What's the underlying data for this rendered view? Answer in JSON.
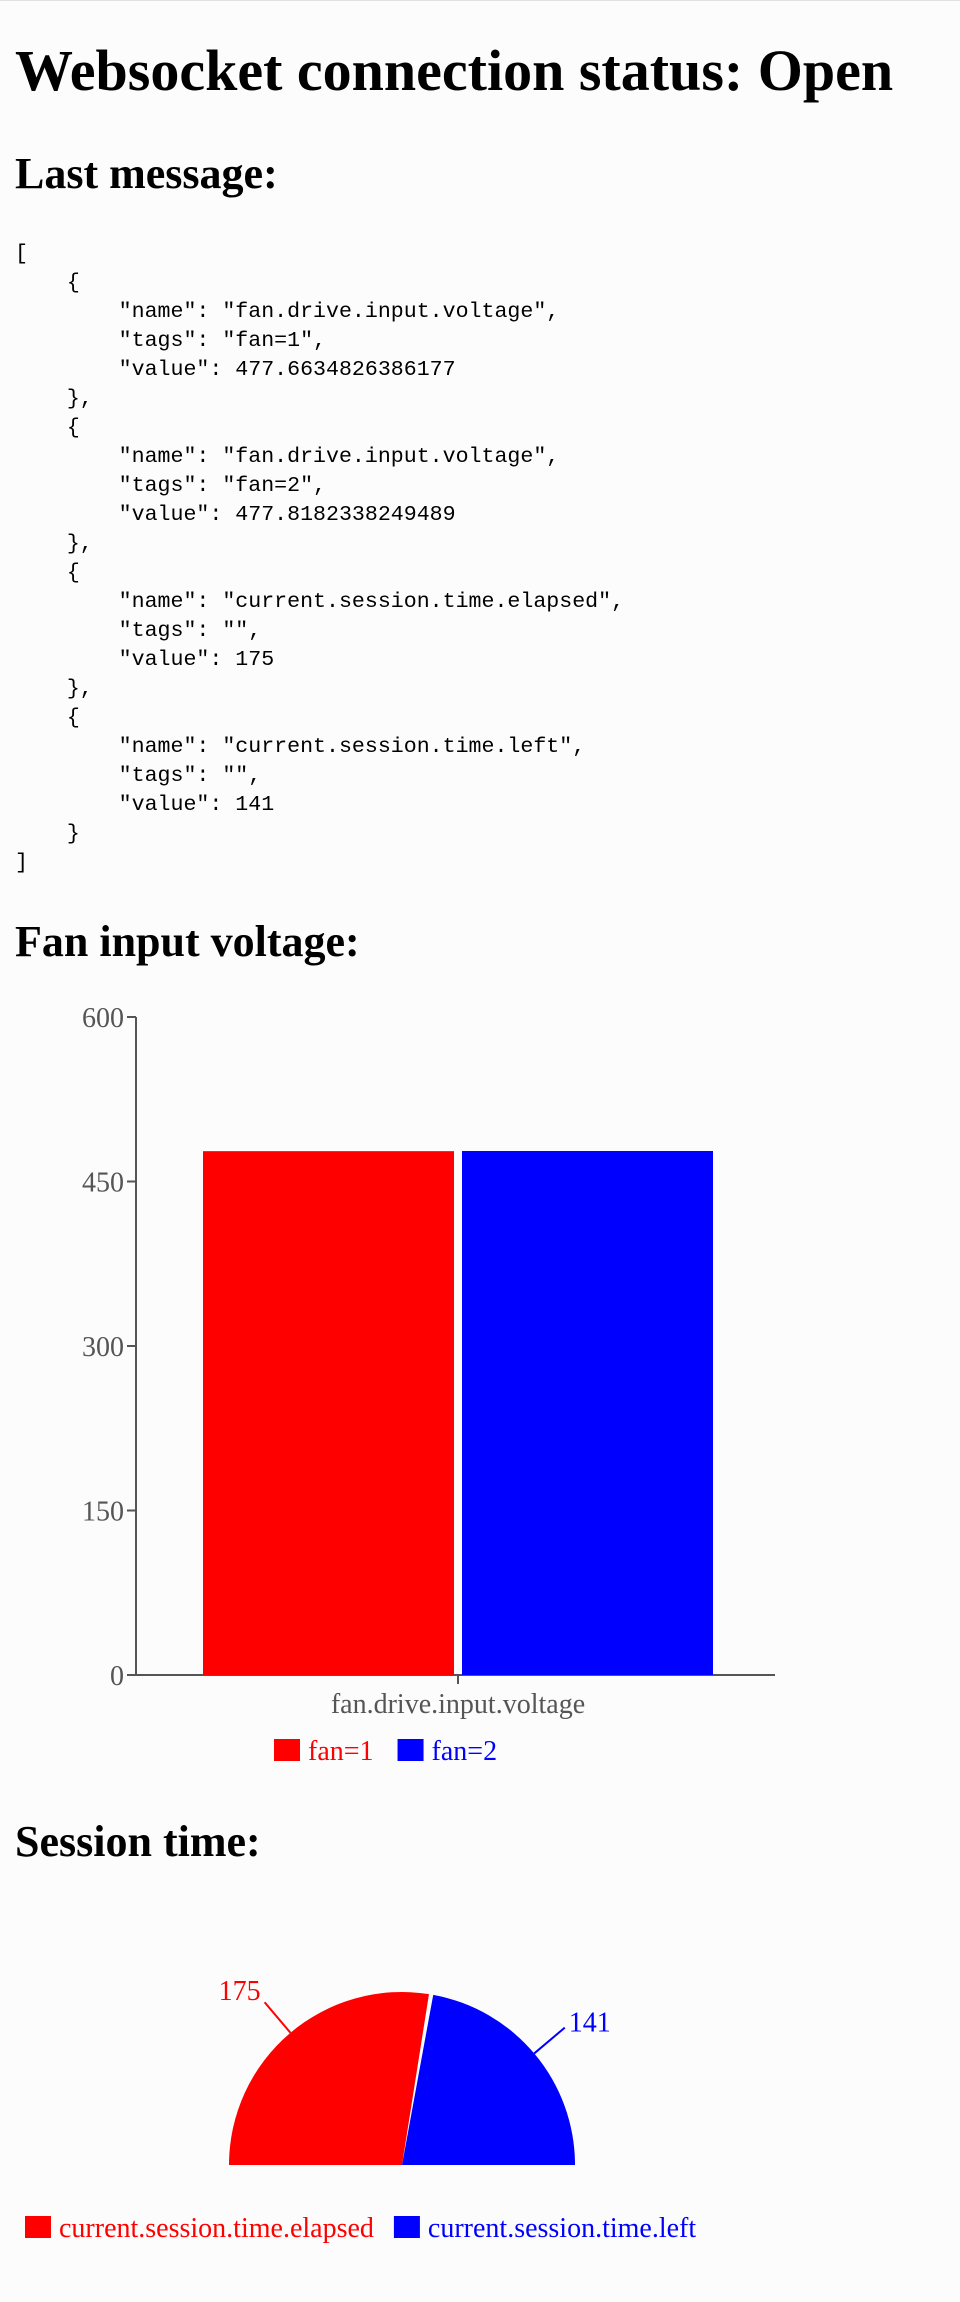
{
  "page": {
    "status_heading": "Websocket connection status: Open",
    "last_message_heading": "Last message:",
    "last_message_json": "[\n    {\n        \"name\": \"fan.drive.input.voltage\",\n        \"tags\": \"fan=1\",\n        \"value\": 477.6634826386177\n    },\n    {\n        \"name\": \"fan.drive.input.voltage\",\n        \"tags\": \"fan=2\",\n        \"value\": 477.8182338249489\n    },\n    {\n        \"name\": \"current.session.time.elapsed\",\n        \"tags\": \"\",\n        \"value\": 175\n    },\n    {\n        \"name\": \"current.session.time.left\",\n        \"tags\": \"\",\n        \"value\": 141\n    }\n]",
    "fan_heading": "Fan input voltage:",
    "session_heading": "Session time:"
  },
  "chart_data": [
    {
      "type": "bar",
      "categories": [
        "fan.drive.input.voltage"
      ],
      "series": [
        {
          "name": "fan=1",
          "values": [
            477.6634826386177
          ],
          "color": "#ff0000"
        },
        {
          "name": "fan=2",
          "values": [
            477.8182338249489
          ],
          "color": "#0000ff"
        }
      ],
      "ylim": [
        0,
        600
      ],
      "yticks": [
        0,
        150,
        300,
        450,
        600
      ],
      "legend": "bottom",
      "grid": false
    },
    {
      "type": "pie",
      "variant": "half-donut",
      "labels": [
        "current.session.time.elapsed",
        "current.session.time.left"
      ],
      "values": [
        175,
        141
      ],
      "colors": [
        "#ff0000",
        "#0000ff"
      ],
      "legend": "bottom"
    }
  ]
}
